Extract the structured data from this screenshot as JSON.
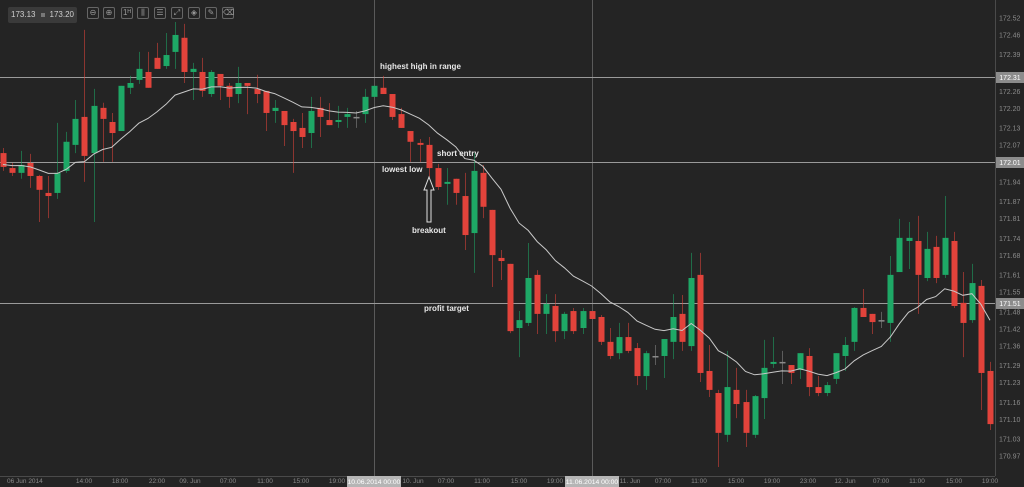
{
  "toolbar": {
    "bid": "173.13",
    "ask": "173.20",
    "buttons": [
      {
        "name": "zoom-out-icon",
        "glyph": "⊖"
      },
      {
        "name": "zoom-in-icon",
        "glyph": "⊕"
      },
      {
        "name": "timeframe-icon",
        "glyph": "1ᴴ"
      },
      {
        "name": "chart-type-icon",
        "glyph": "⫼"
      },
      {
        "name": "indicators-icon",
        "glyph": "☰"
      },
      {
        "name": "template-icon",
        "glyph": "⤢"
      },
      {
        "name": "objects-icon",
        "glyph": "◈"
      },
      {
        "name": "draw-icon",
        "glyph": "✎"
      },
      {
        "name": "eraser-icon",
        "glyph": "⌫"
      }
    ]
  },
  "annotations": {
    "highest_high": "highest high in range",
    "lowest_low": "lowest low",
    "short_entry": "short entry",
    "breakout": "breakout",
    "profit_target": "profit target"
  },
  "colors": {
    "background": "#242424",
    "bull": "#1ea866",
    "bear": "#e2433b",
    "doji": "#8a8a8a",
    "moving_average": "#c8c8c8",
    "level_line": "#9a9a9a",
    "axis_text": "#8a8a8a",
    "highlight_box": "#b5b5b5"
  },
  "chart_data": {
    "type": "candlestick",
    "timeframe": "1H",
    "y_axis": {
      "range": [
        170.94,
        172.55
      ],
      "tick_labels": [
        "172.52",
        "172.46",
        "172.39",
        "172.26",
        "172.20",
        "172.13",
        "172.07",
        "171.94",
        "171.87",
        "171.81",
        "171.74",
        "171.68",
        "171.61",
        "171.55",
        "171.48",
        "171.42",
        "171.36",
        "171.29",
        "171.23",
        "171.16",
        "171.10",
        "171.03",
        "170.97"
      ]
    },
    "x_axis": {
      "tick_labels": [
        "06 Jun 2014",
        "14:00",
        "18:00",
        "22:00",
        "09. Jun",
        "07:00",
        "11:00",
        "15:00",
        "19:00",
        "10. Jun",
        "07:00",
        "11:00",
        "15:00",
        "19:00",
        "11. Jun",
        "07:00",
        "11:00",
        "15:00",
        "19:00",
        "23:00",
        "12. Jun",
        "07:00",
        "11:00",
        "15:00",
        "19:00"
      ]
    },
    "crosshair_labels": [
      "10.06.2014 00:00",
      "11.06.2014 00:00"
    ],
    "levels": [
      {
        "price": 172.31,
        "label": "172.31"
      },
      {
        "price": 172.01,
        "label": "172.01"
      },
      {
        "price": 171.51,
        "label": "171.51"
      }
    ],
    "moving_average": {
      "type": "EMA",
      "shown": true
    },
    "ohlc": [
      [
        172.042,
        172.06,
        171.979,
        171.993
      ],
      [
        171.989,
        172.007,
        171.961,
        171.972
      ],
      [
        171.972,
        172.05,
        171.951,
        172.0
      ],
      [
        172.007,
        172.039,
        171.919,
        171.961
      ],
      [
        171.961,
        171.965,
        171.798,
        171.912
      ],
      [
        171.901,
        171.961,
        171.812,
        171.89
      ],
      [
        171.901,
        172.149,
        171.88,
        171.972
      ],
      [
        171.979,
        172.117,
        171.972,
        172.082
      ],
      [
        172.071,
        172.23,
        172.042,
        172.163
      ],
      [
        172.17,
        172.478,
        171.94,
        172.032
      ],
      [
        172.042,
        172.269,
        171.798,
        172.209
      ],
      [
        172.202,
        172.22,
        172.011,
        172.163
      ],
      [
        172.152,
        172.184,
        172.011,
        172.113
      ],
      [
        172.12,
        172.28,
        172.12,
        172.28
      ],
      [
        172.273,
        172.315,
        172.251,
        172.29
      ],
      [
        172.301,
        172.4,
        172.287,
        172.34
      ],
      [
        172.329,
        172.4,
        172.273,
        172.273
      ],
      [
        172.379,
        172.432,
        172.34,
        172.34
      ],
      [
        172.35,
        172.467,
        172.34,
        172.389
      ],
      [
        172.4,
        172.506,
        172.34,
        172.46
      ],
      [
        172.45,
        172.499,
        172.29,
        172.329
      ],
      [
        172.329,
        172.361,
        172.23,
        172.34
      ],
      [
        172.329,
        172.379,
        172.241,
        172.262
      ],
      [
        172.251,
        172.336,
        172.241,
        172.329
      ],
      [
        172.322,
        172.322,
        172.23,
        172.28
      ],
      [
        172.28,
        172.29,
        172.202,
        172.241
      ],
      [
        172.251,
        172.347,
        172.219,
        172.29
      ],
      [
        172.29,
        172.29,
        172.18,
        172.28
      ],
      [
        172.269,
        172.319,
        172.219,
        172.251
      ],
      [
        172.262,
        172.262,
        172.12,
        172.184
      ],
      [
        172.191,
        172.23,
        172.149,
        172.202
      ],
      [
        172.191,
        172.191,
        172.067,
        172.141
      ],
      [
        172.152,
        172.163,
        171.972,
        172.12
      ],
      [
        172.131,
        172.184,
        172.06,
        172.099
      ],
      [
        172.113,
        172.241,
        172.06,
        172.191
      ],
      [
        172.202,
        172.241,
        172.099,
        172.17
      ],
      [
        172.159,
        172.219,
        172.141,
        172.141
      ],
      [
        172.152,
        172.209,
        172.131,
        172.159
      ],
      [
        172.17,
        172.202,
        172.131,
        172.18
      ],
      [
        172.17,
        172.191,
        172.131,
        172.17
      ],
      [
        172.18,
        172.269,
        172.149,
        172.241
      ],
      [
        172.241,
        172.28,
        172.241,
        172.28
      ],
      [
        172.273,
        172.315,
        172.251,
        172.251
      ],
      [
        172.251,
        172.251,
        172.159,
        172.17
      ],
      [
        172.18,
        172.202,
        172.131,
        172.131
      ],
      [
        172.12,
        172.12,
        172.011,
        172.082
      ],
      [
        172.078,
        172.092,
        172.011,
        172.071
      ],
      [
        172.071,
        172.099,
        171.958,
        171.989
      ],
      [
        171.989,
        172.004,
        171.912,
        171.922
      ],
      [
        171.933,
        171.989,
        171.859,
        171.94
      ],
      [
        171.951,
        171.951,
        171.859,
        171.901
      ],
      [
        171.89,
        171.972,
        171.699,
        171.752
      ],
      [
        171.759,
        172.042,
        171.618,
        171.979
      ],
      [
        171.972,
        172.0,
        171.812,
        171.852
      ],
      [
        171.841,
        171.841,
        171.568,
        171.681
      ],
      [
        171.671,
        171.699,
        171.593,
        171.66
      ],
      [
        171.65,
        171.65,
        171.405,
        171.412
      ],
      [
        171.423,
        171.483,
        171.32,
        171.451
      ],
      [
        171.441,
        171.724,
        171.43,
        171.6
      ],
      [
        171.611,
        171.628,
        171.402,
        171.473
      ],
      [
        171.473,
        171.543,
        171.402,
        171.508
      ],
      [
        171.501,
        171.543,
        171.374,
        171.412
      ],
      [
        171.412,
        171.48,
        171.384,
        171.473
      ],
      [
        171.483,
        171.494,
        171.402,
        171.412
      ],
      [
        171.423,
        171.494,
        171.402,
        171.483
      ],
      [
        171.483,
        171.483,
        171.455,
        171.455
      ],
      [
        171.462,
        171.469,
        171.363,
        171.374
      ],
      [
        171.374,
        171.423,
        171.313,
        171.324
      ],
      [
        171.334,
        171.441,
        171.313,
        171.391
      ],
      [
        171.391,
        171.441,
        171.334,
        171.342
      ],
      [
        171.352,
        171.37,
        171.221,
        171.253
      ],
      [
        171.253,
        171.342,
        171.204,
        171.334
      ],
      [
        171.324,
        171.363,
        171.292,
        171.324
      ],
      [
        171.324,
        171.384,
        171.246,
        171.384
      ],
      [
        171.374,
        171.543,
        171.313,
        171.462
      ],
      [
        171.473,
        171.54,
        171.342,
        171.374
      ],
      [
        171.359,
        171.689,
        171.342,
        171.6
      ],
      [
        171.611,
        171.689,
        171.232,
        171.264
      ],
      [
        171.271,
        171.363,
        171.179,
        171.204
      ],
      [
        171.193,
        171.204,
        170.931,
        171.052
      ],
      [
        171.045,
        171.342,
        171.02,
        171.214
      ],
      [
        171.204,
        171.282,
        171.104,
        171.154
      ],
      [
        171.161,
        171.204,
        171.002,
        171.052
      ],
      [
        171.045,
        171.186,
        171.034,
        171.182
      ],
      [
        171.175,
        171.381,
        171.101,
        171.282
      ],
      [
        171.296,
        171.391,
        171.282,
        171.303
      ],
      [
        171.303,
        171.342,
        171.225,
        171.303
      ],
      [
        171.292,
        171.292,
        171.225,
        171.264
      ],
      [
        171.275,
        171.334,
        171.243,
        171.334
      ],
      [
        171.324,
        171.352,
        171.182,
        171.214
      ],
      [
        171.214,
        171.253,
        171.182,
        171.193
      ],
      [
        171.193,
        171.232,
        171.182,
        171.221
      ],
      [
        171.243,
        171.334,
        171.225,
        171.334
      ],
      [
        171.324,
        171.391,
        171.271,
        171.363
      ],
      [
        171.374,
        171.497,
        171.342,
        171.494
      ],
      [
        171.494,
        171.561,
        171.462,
        171.462
      ],
      [
        171.473,
        171.473,
        171.402,
        171.444
      ],
      [
        171.451,
        171.48,
        171.423,
        171.451
      ],
      [
        171.441,
        171.678,
        171.374,
        171.611
      ],
      [
        171.621,
        171.809,
        171.621,
        171.742
      ],
      [
        171.731,
        171.798,
        171.632,
        171.742
      ],
      [
        171.731,
        171.82,
        171.473,
        171.611
      ],
      [
        171.6,
        171.763,
        171.589,
        171.703
      ],
      [
        171.71,
        171.749,
        171.582,
        171.6
      ],
      [
        171.611,
        171.89,
        171.6,
        171.742
      ],
      [
        171.731,
        171.763,
        171.494,
        171.501
      ],
      [
        171.512,
        171.621,
        171.32,
        171.441
      ],
      [
        171.451,
        171.65,
        171.441,
        171.582
      ],
      [
        171.572,
        171.593,
        171.133,
        171.264
      ],
      [
        171.271,
        171.303,
        171.062,
        171.083
      ]
    ]
  }
}
